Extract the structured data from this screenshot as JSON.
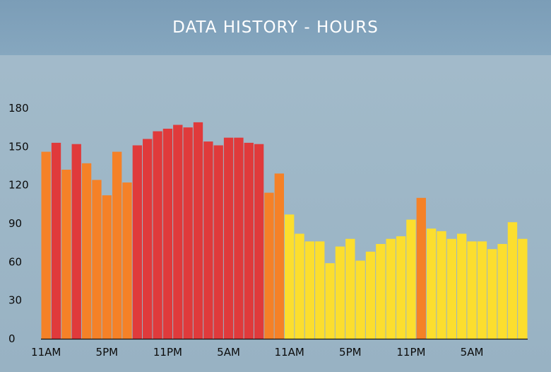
{
  "header": {
    "title": "DATA HISTORY - HOURS"
  },
  "colors": {
    "orange": "#f58127",
    "red": "#e03a3b",
    "yellow": "#fcde2e",
    "axis": "#111111"
  },
  "chart_data": {
    "type": "bar",
    "title": "DATA HISTORY - HOURS",
    "ylim": [
      0,
      180
    ],
    "yticks": [
      0,
      30,
      60,
      90,
      120,
      150,
      180
    ],
    "xtick_labels": [
      {
        "label": "11AM",
        "index": 0
      },
      {
        "label": "5PM",
        "index": 6
      },
      {
        "label": "11PM",
        "index": 12
      },
      {
        "label": "5AM",
        "index": 18
      },
      {
        "label": "11AM",
        "index": 24
      },
      {
        "label": "5PM",
        "index": 30
      },
      {
        "label": "11PM",
        "index": 36
      },
      {
        "label": "5AM",
        "index": 42
      }
    ],
    "values": [
      146,
      153,
      132,
      152,
      137,
      124,
      112,
      146,
      122,
      151,
      156,
      162,
      164,
      167,
      165,
      169,
      154,
      151,
      157,
      157,
      153,
      152,
      114,
      129,
      97,
      82,
      76,
      76,
      59,
      72,
      78,
      61,
      68,
      74,
      78,
      80,
      93,
      110,
      86,
      84,
      78,
      82,
      76,
      76,
      70,
      74,
      91,
      78
    ],
    "categories": [
      "orange",
      "red",
      "orange",
      "red",
      "orange",
      "orange",
      "orange",
      "orange",
      "orange",
      "red",
      "red",
      "red",
      "red",
      "red",
      "red",
      "red",
      "red",
      "red",
      "red",
      "red",
      "red",
      "red",
      "orange",
      "orange",
      "yellow",
      "yellow",
      "yellow",
      "yellow",
      "yellow",
      "yellow",
      "yellow",
      "yellow",
      "yellow",
      "yellow",
      "yellow",
      "yellow",
      "yellow",
      "orange",
      "yellow",
      "yellow",
      "yellow",
      "yellow",
      "yellow",
      "yellow",
      "yellow",
      "yellow",
      "yellow",
      "yellow"
    ]
  }
}
